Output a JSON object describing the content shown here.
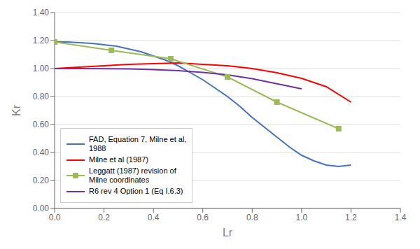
{
  "chart_data": {
    "type": "line",
    "xlabel": "Lr",
    "ylabel": "Kr",
    "xlim": [
      0,
      1.4
    ],
    "ylim": [
      0.0,
      1.4
    ],
    "xticks": [
      {
        "value": 0,
        "label": "0.0"
      },
      0.2,
      0.4,
      0.6,
      0.8,
      {
        "value": 1,
        "label": "1.0"
      },
      1.2,
      1.4
    ],
    "yticks": [
      {
        "value": 0,
        "label": "0.00"
      },
      {
        "value": 0.2,
        "label": "0.20"
      },
      {
        "value": 0.4,
        "label": "0.40"
      },
      {
        "value": 0.6,
        "label": "0.60"
      },
      {
        "value": 0.8,
        "label": "0.80"
      },
      {
        "value": 1,
        "label": "1.00"
      },
      {
        "value": 1.2,
        "label": "1.20"
      },
      {
        "value": 1.4,
        "label": "1.40"
      }
    ],
    "grid": "y",
    "legend": "lower left",
    "series": [
      {
        "name": "FAD, Equation 7, Milne et al,\n1988",
        "color": "#4472C4",
        "x": [
          0.0,
          0.05,
          0.1,
          0.15,
          0.2,
          0.25,
          0.3,
          0.35,
          0.4,
          0.45,
          0.5,
          0.55,
          0.6,
          0.65,
          0.7,
          0.75,
          0.8,
          0.85,
          0.9,
          0.95,
          1.0,
          1.05,
          1.1,
          1.15,
          1.2
        ],
        "values": [
          1.19,
          1.19,
          1.185,
          1.18,
          1.17,
          1.16,
          1.14,
          1.12,
          1.09,
          1.06,
          1.02,
          0.97,
          0.92,
          0.86,
          0.8,
          0.73,
          0.65,
          0.58,
          0.51,
          0.44,
          0.38,
          0.34,
          0.31,
          0.3,
          0.31
        ]
      },
      {
        "name": "Milne et al (1987)",
        "color": "#FF0000",
        "x": [
          0.0,
          0.1,
          0.2,
          0.3,
          0.4,
          0.5,
          0.6,
          0.7,
          0.8,
          0.9,
          1.0,
          1.1,
          1.2
        ],
        "values": [
          1.0,
          1.01,
          1.02,
          1.03,
          1.035,
          1.04,
          1.03,
          1.02,
          1.0,
          0.97,
          0.93,
          0.87,
          0.76
        ]
      },
      {
        "name": "Leggatt (1987) revision of\nMilne coordinates",
        "color": "#9BBB59",
        "marker": "square",
        "x": [
          0.0,
          0.23,
          0.47,
          0.7,
          0.9,
          1.15
        ],
        "values": [
          1.19,
          1.13,
          1.07,
          0.94,
          0.76,
          0.57
        ]
      },
      {
        "name": "R6 rev 4 Option 1 (Eq I.6.3)",
        "color": "#7030A0",
        "x": [
          0.0,
          0.1,
          0.2,
          0.3,
          0.4,
          0.5,
          0.6,
          0.7,
          0.8,
          0.9,
          1.0
        ],
        "values": [
          1.0,
          1.0,
          0.999,
          0.997,
          0.993,
          0.985,
          0.973,
          0.955,
          0.928,
          0.891,
          0.855
        ]
      }
    ]
  }
}
